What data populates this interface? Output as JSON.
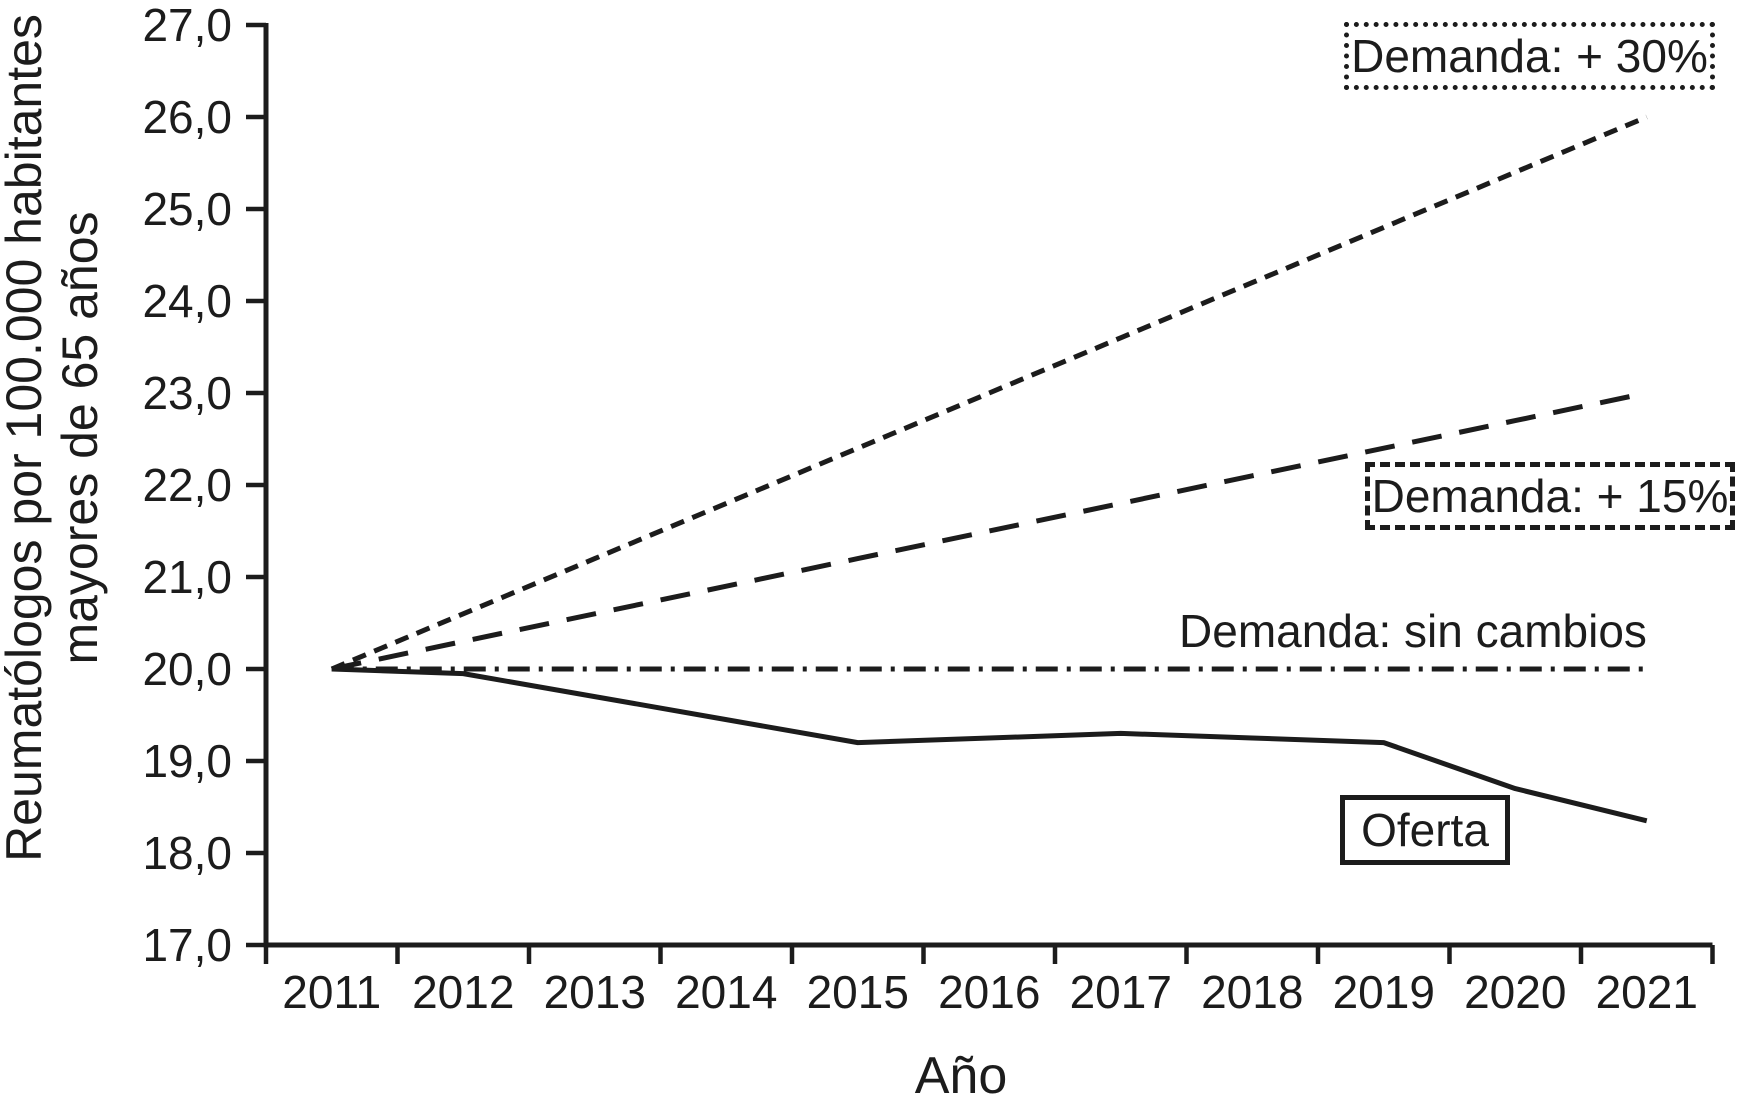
{
  "chart_data": {
    "type": "line",
    "title": "",
    "xlabel": "Año",
    "ylabel": "Reumatólogos por 100.000 habitantes mayores de 65 años",
    "ylabel_lines": [
      "Reumatólogos por 100.000 habitantes",
      "mayores de 65 años"
    ],
    "x": [
      2011,
      2012,
      2013,
      2014,
      2015,
      2016,
      2017,
      2018,
      2019,
      2020,
      2021
    ],
    "ylim": [
      17.0,
      27.0
    ],
    "ytick_step": 1.0,
    "ytick_labels": [
      "27,0",
      "26,0",
      "25,0",
      "24,0",
      "23,0",
      "22,0",
      "21,0",
      "20,0",
      "19,0",
      "18,0",
      "17,0"
    ],
    "grid": false,
    "legend_position": "inline-annotations",
    "series": [
      {
        "id": "demanda-30",
        "name": "Demanda: + 30%",
        "dash": "short-dash",
        "values": [
          20.0,
          20.6,
          21.2,
          21.8,
          22.4,
          23.0,
          23.6,
          24.2,
          24.8,
          25.4,
          26.0
        ]
      },
      {
        "id": "demanda-15",
        "name": "Demanda: + 15%",
        "dash": "long-dash",
        "values": [
          20.0,
          20.3,
          20.6,
          20.9,
          21.2,
          21.5,
          21.8,
          22.1,
          22.4,
          22.7,
          23.0
        ]
      },
      {
        "id": "demanda-sin-cambios",
        "name": "Demanda: sin cambios",
        "dash": "dash-dot",
        "values": [
          20.0,
          20.0,
          20.0,
          20.0,
          20.0,
          20.0,
          20.0,
          20.0,
          20.0,
          20.0,
          20.0
        ]
      },
      {
        "id": "oferta",
        "name": "Oferta",
        "dash": "solid",
        "values": [
          20.0,
          19.95,
          19.7,
          19.45,
          19.2,
          19.25,
          19.3,
          19.25,
          19.2,
          18.7,
          18.35
        ]
      }
    ],
    "annotations": [
      {
        "id": "demanda-30-label",
        "label": "Demanda: + 30%",
        "box": "dotted"
      },
      {
        "id": "demanda-15-label",
        "label": "Demanda: + 15%",
        "box": "dashed"
      },
      {
        "id": "demanda-sin-cambios-label",
        "label": "Demanda: sin cambios",
        "box": "none"
      },
      {
        "id": "oferta-label",
        "label": "Oferta",
        "box": "solid"
      }
    ],
    "colors": {
      "ink": "#1c1c1c",
      "background": "#ffffff"
    }
  }
}
